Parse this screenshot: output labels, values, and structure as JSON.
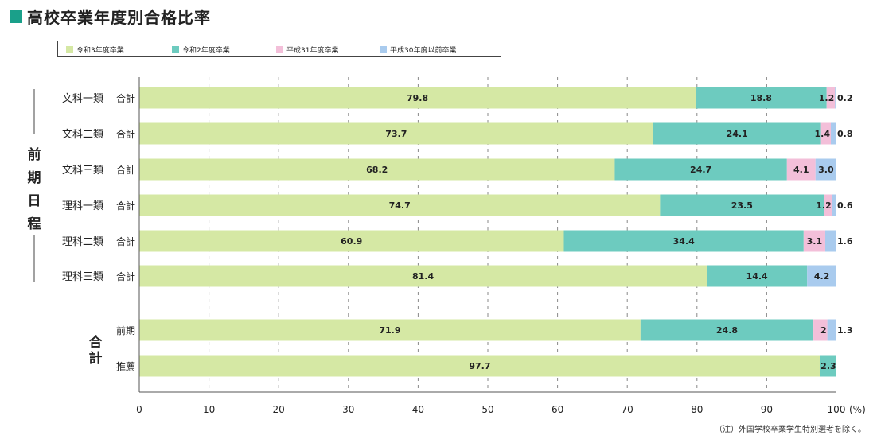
{
  "title": "高校卒業年度別合格比率",
  "note": "（注）外国学校卒業学生特別選考を除く。",
  "axis_unit": "(%)",
  "group_labels": {
    "zenki": "前期日程",
    "total": "合計"
  },
  "chart_data": {
    "type": "bar",
    "orientation": "horizontal",
    "stacked": true,
    "xlim": [
      0,
      100
    ],
    "xticks": [
      0,
      10,
      20,
      30,
      40,
      50,
      60,
      70,
      80,
      90,
      100
    ],
    "xunit": "(%)",
    "grid": "vertical dashed",
    "legend_position": "top",
    "colors": [
      "#d5e8a4",
      "#6dcbbf",
      "#f3bfd9",
      "#a9cbee"
    ],
    "series": [
      {
        "name": "令和3年度卒業"
      },
      {
        "name": "令和2年度卒業"
      },
      {
        "name": "平成31年度卒業"
      },
      {
        "name": "平成30年度以前卒業"
      }
    ],
    "rows": [
      {
        "group": "前期日程",
        "label": "文科一類",
        "sublabel": "合計",
        "values": [
          79.8,
          18.8,
          1.2,
          0.2
        ]
      },
      {
        "group": "前期日程",
        "label": "文科二類",
        "sublabel": "合計",
        "values": [
          73.7,
          24.1,
          1.4,
          0.8
        ]
      },
      {
        "group": "前期日程",
        "label": "文科三類",
        "sublabel": "合計",
        "values": [
          68.2,
          24.7,
          4.1,
          3.0
        ],
        "labels": [
          "68.2",
          "24.7",
          "4.1",
          "3.0"
        ]
      },
      {
        "group": "前期日程",
        "label": "理科一類",
        "sublabel": "合計",
        "values": [
          74.7,
          23.5,
          1.2,
          0.6
        ]
      },
      {
        "group": "前期日程",
        "label": "理科二類",
        "sublabel": "合計",
        "values": [
          60.9,
          34.4,
          3.1,
          1.6
        ]
      },
      {
        "group": "前期日程",
        "label": "理科三類",
        "sublabel": "合計",
        "values": [
          81.4,
          14.4,
          0,
          4.2
        ]
      },
      {
        "group": "合計",
        "label": "",
        "sublabel": "前期",
        "values": [
          71.9,
          24.8,
          2.0,
          1.3
        ]
      },
      {
        "group": "合計",
        "label": "",
        "sublabel": "推薦",
        "values": [
          97.7,
          2.3,
          0,
          0
        ]
      }
    ]
  }
}
